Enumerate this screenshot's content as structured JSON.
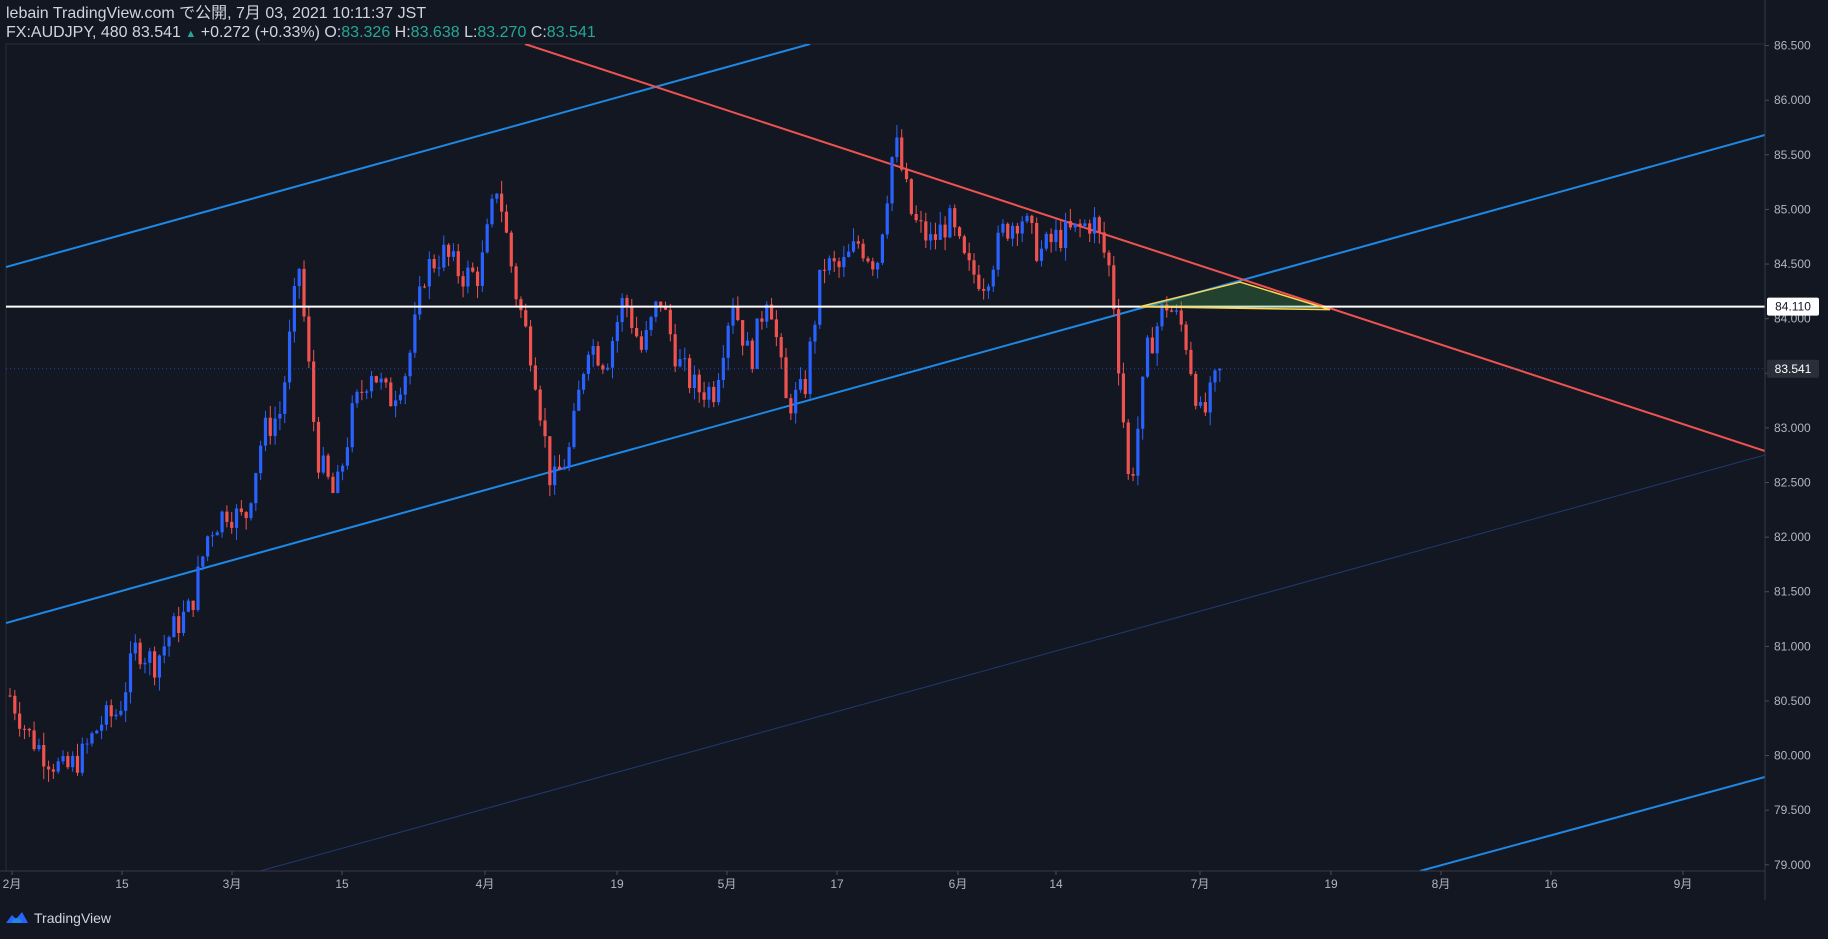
{
  "header": {
    "line1": "lebain TradingView.com で公開, 7月 03, 2021 10:11:37 JST",
    "symbol": "FX:AUDJPY, 480",
    "last": "83.541",
    "change_arrow": "▲",
    "change": "+0.272 (+0.33%)",
    "o_label": "O:",
    "o": "83.326",
    "h_label": "H:",
    "h": "83.638",
    "l_label": "L:",
    "l": "83.270",
    "c_label": "C:",
    "c": "83.541"
  },
  "footer": {
    "brand": "TradingView",
    "logo": "tradingview-logo-icon"
  },
  "colors": {
    "background": "#131722",
    "up": "#2962ff",
    "down": "#ef5350",
    "channel": "#1e88e5",
    "resistance": "#ef5350",
    "horizontal": "#ffffff",
    "triangle_fill": "#4caf50"
  },
  "chart_data": {
    "type": "candlestick",
    "symbol": "FX:AUDJPY",
    "interval": "480",
    "y_ticks": [
      "86.500",
      "86.000",
      "85.500",
      "85.000",
      "84.500",
      "84.000",
      "83.500",
      "83.000",
      "82.500",
      "82.000",
      "81.500",
      "81.000",
      "80.500",
      "80.000",
      "79.500",
      "79.000"
    ],
    "x_ticks": [
      "2月",
      "15",
      "3月",
      "15",
      "4月",
      "19",
      "5月",
      "17",
      "6月",
      "14",
      "7月",
      "19",
      "8月",
      "16",
      "9月"
    ],
    "ylim": [
      78.9,
      86.6
    ],
    "price_labels": [
      {
        "value": "84.110",
        "style": "horizontal-line"
      },
      {
        "value": "83.541",
        "style": "last-price"
      }
    ],
    "horizontal_line": 84.11,
    "anchor_prices": [
      80.55,
      80.2,
      80.0,
      79.85,
      80.0,
      80.3,
      80.4,
      81.0,
      80.85,
      81.15,
      81.35,
      82.05,
      82.25,
      82.15,
      82.95,
      83.15,
      84.5,
      82.75,
      82.35,
      83.15,
      83.55,
      83.25,
      83.55,
      84.45,
      84.6,
      84.4,
      84.4,
      85.25,
      84.25,
      83.6,
      82.45,
      82.8,
      83.8,
      83.6,
      84.2,
      83.7,
      84.2,
      83.6,
      83.35,
      83.35,
      84.2,
      83.6,
      84.3,
      83.2,
      83.35,
      84.5,
      84.45,
      84.7,
      84.5,
      85.65,
      84.9,
      84.7,
      84.9,
      84.45,
      84.35,
      84.8,
      84.95,
      84.6,
      84.75,
      84.8,
      84.9,
      84.4,
      82.4,
      83.7,
      84.15,
      83.9,
      83.05,
      83.541
    ]
  },
  "drawings": [
    {
      "name": "upper-channel-line",
      "kind": "trendline"
    },
    {
      "name": "middle-channel-line",
      "kind": "trendline"
    },
    {
      "name": "lower-channel-line",
      "kind": "trendline"
    },
    {
      "name": "faint-parallel-line",
      "kind": "trendline"
    },
    {
      "name": "descending-resistance-line",
      "kind": "trendline"
    },
    {
      "name": "horizontal-line",
      "kind": "horizontal"
    },
    {
      "name": "triangle-pattern",
      "kind": "shape"
    }
  ]
}
